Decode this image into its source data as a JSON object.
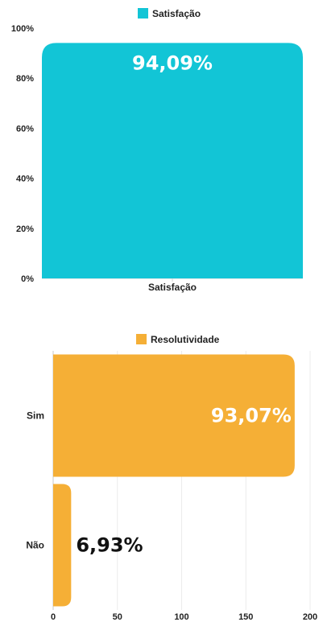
{
  "chart_data": [
    {
      "type": "bar",
      "orientation": "vertical",
      "categories": [
        "Satisfação"
      ],
      "series": [
        {
          "name": "Satisfação",
          "values": [
            94.09
          ]
        }
      ],
      "data_labels": [
        "94,09%"
      ],
      "y_ticks": [
        "0%",
        "20%",
        "40%",
        "60%",
        "80%",
        "100%"
      ],
      "ylim": [
        0,
        100
      ],
      "legend": "top-center",
      "color": "#12C5D6",
      "grid": false
    },
    {
      "type": "bar",
      "orientation": "horizontal",
      "categories": [
        "Sim",
        "Não"
      ],
      "series": [
        {
          "name": "Resolutividade",
          "values": [
            188,
            14
          ]
        }
      ],
      "data_labels": [
        "93,07%",
        "6,93%"
      ],
      "x_ticks": [
        "0",
        "50",
        "100",
        "150",
        "200"
      ],
      "xlim": [
        0,
        200
      ],
      "legend": "top-center",
      "color": "#F5AF36",
      "grid": true
    }
  ]
}
